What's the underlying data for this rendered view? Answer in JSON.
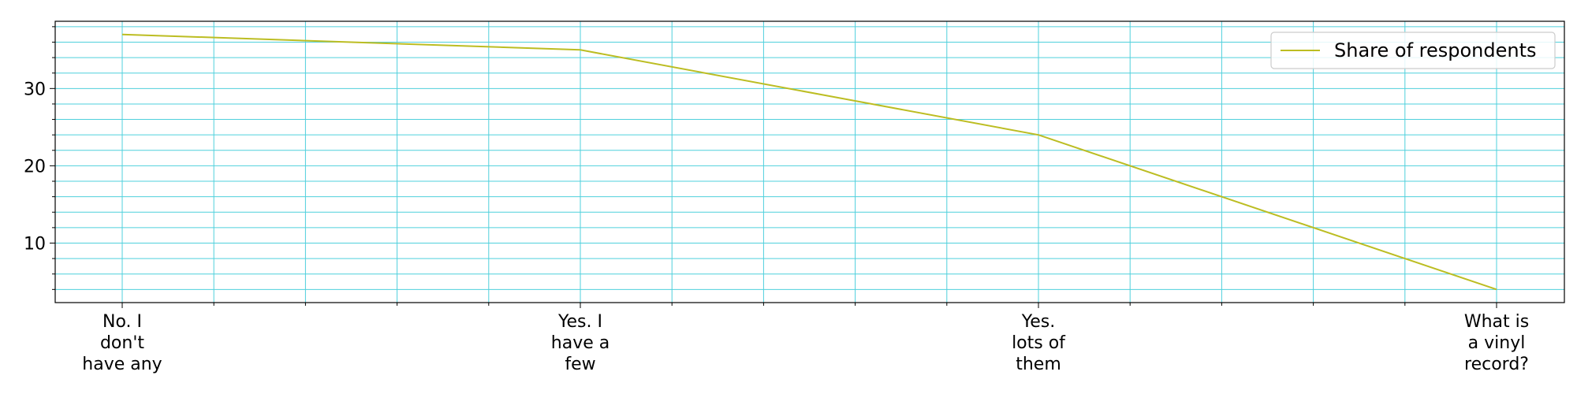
{
  "chart_data": {
    "type": "line",
    "categories": [
      "No. I don't have any",
      "Yes. I have a few",
      "Yes. lots of them",
      "What is a vinyl record?"
    ],
    "category_lines": [
      [
        "No. I",
        "don't",
        "have any"
      ],
      [
        "Yes. I",
        "have a",
        "few"
      ],
      [
        "Yes.",
        "lots of",
        "them"
      ],
      [
        "What is",
        "a vinyl",
        "record?"
      ]
    ],
    "series": [
      {
        "name": "Share of respondents",
        "values": [
          37,
          35,
          24,
          4
        ],
        "color": "#bcbd22"
      }
    ],
    "ylim": [
      2.3,
      38.7
    ],
    "yticks": [
      10,
      20,
      30
    ],
    "y_minor_step": 2,
    "x_minor_divisions": 5,
    "grid": true,
    "grid_color": "#4fd0dc",
    "legend_position": "top-right",
    "title": "",
    "xlabel": "",
    "ylabel": ""
  }
}
